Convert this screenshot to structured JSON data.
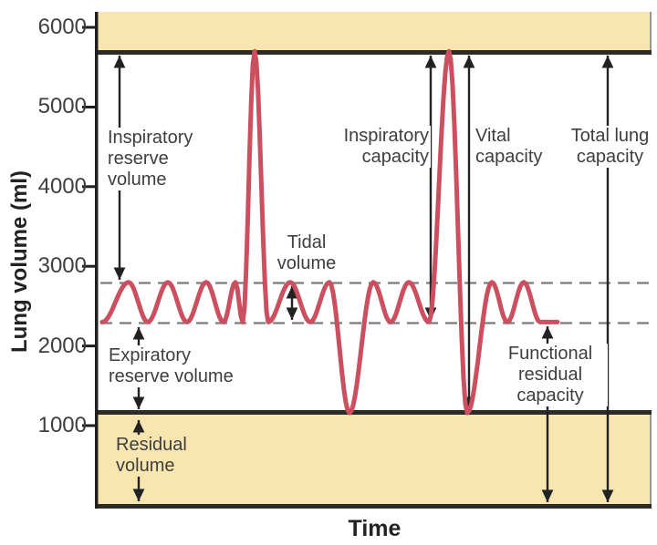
{
  "figure": {
    "xlabel": "Time",
    "ylabel": "Lung volume (ml)"
  },
  "axis": {
    "yticks": [
      "6000",
      "5000",
      "4000",
      "3000",
      "2000",
      "1000"
    ]
  },
  "chart_data": {
    "type": "line",
    "xlabel": "Time",
    "ylabel": "Lung volume (ml)",
    "y_units": "ml",
    "ylim": [
      0,
      6200
    ],
    "yticks": [
      6000,
      5000,
      4000,
      3000,
      2000,
      1000
    ],
    "grid": false,
    "reference_levels_ml": {
      "total_lung_capacity_line": 5700,
      "tidal_peak_dashed": 2800,
      "tidal_trough_dashed": 2300,
      "residual_volume_line": 1160,
      "zero_baseline": 0
    },
    "shaded_bands_ml": [
      {
        "name": "above-total-lung-capacity",
        "from": 5700,
        "to": 6200
      },
      {
        "name": "residual-volume-zone",
        "from": 0,
        "to": 1160
      }
    ],
    "series": [
      {
        "name": "breathing-trace",
        "color": "#cb4f5e",
        "extrema_x_ml": [
          [
            112,
            2300
          ],
          [
            141,
            2800
          ],
          [
            162,
            2300
          ],
          [
            184,
            2800
          ],
          [
            205,
            2300
          ],
          [
            226,
            2800
          ],
          [
            245,
            2300
          ],
          [
            258,
            2800
          ],
          [
            266,
            2300
          ],
          [
            279,
            5700
          ],
          [
            294,
            2300
          ],
          [
            318,
            2800
          ],
          [
            340,
            2300
          ],
          [
            361,
            2800
          ],
          [
            383,
            1160
          ],
          [
            409,
            2800
          ],
          [
            428,
            2300
          ],
          [
            448,
            2800
          ],
          [
            470,
            2300
          ],
          [
            492,
            5700
          ],
          [
            512,
            1160
          ],
          [
            539,
            2800
          ],
          [
            556,
            2300
          ],
          [
            574,
            2800
          ],
          [
            592,
            2300
          ],
          [
            611,
            2300
          ]
        ]
      }
    ]
  },
  "annotations": {
    "irv": {
      "label": "Inspiratory\nreserve\nvolume"
    },
    "erv": {
      "label": "Expiratory\nreserve volume"
    },
    "rv": {
      "label": "Residual\nvolume"
    },
    "tidal": {
      "label": "Tidal\nvolume"
    },
    "ic": {
      "label": "Inspiratory\ncapacity"
    },
    "vc": {
      "label": "Vital\ncapacity"
    },
    "tlc": {
      "label": "Total lung\ncapacity"
    },
    "frc": {
      "label": "Functional\nresidual\ncapacity"
    }
  },
  "colors": {
    "band": "#f8e5b0",
    "curve": "#cb4f5e",
    "heavy_line": "#2b2b28",
    "dashed_line": "#7b7b7b",
    "text": "#3e3e3e"
  }
}
